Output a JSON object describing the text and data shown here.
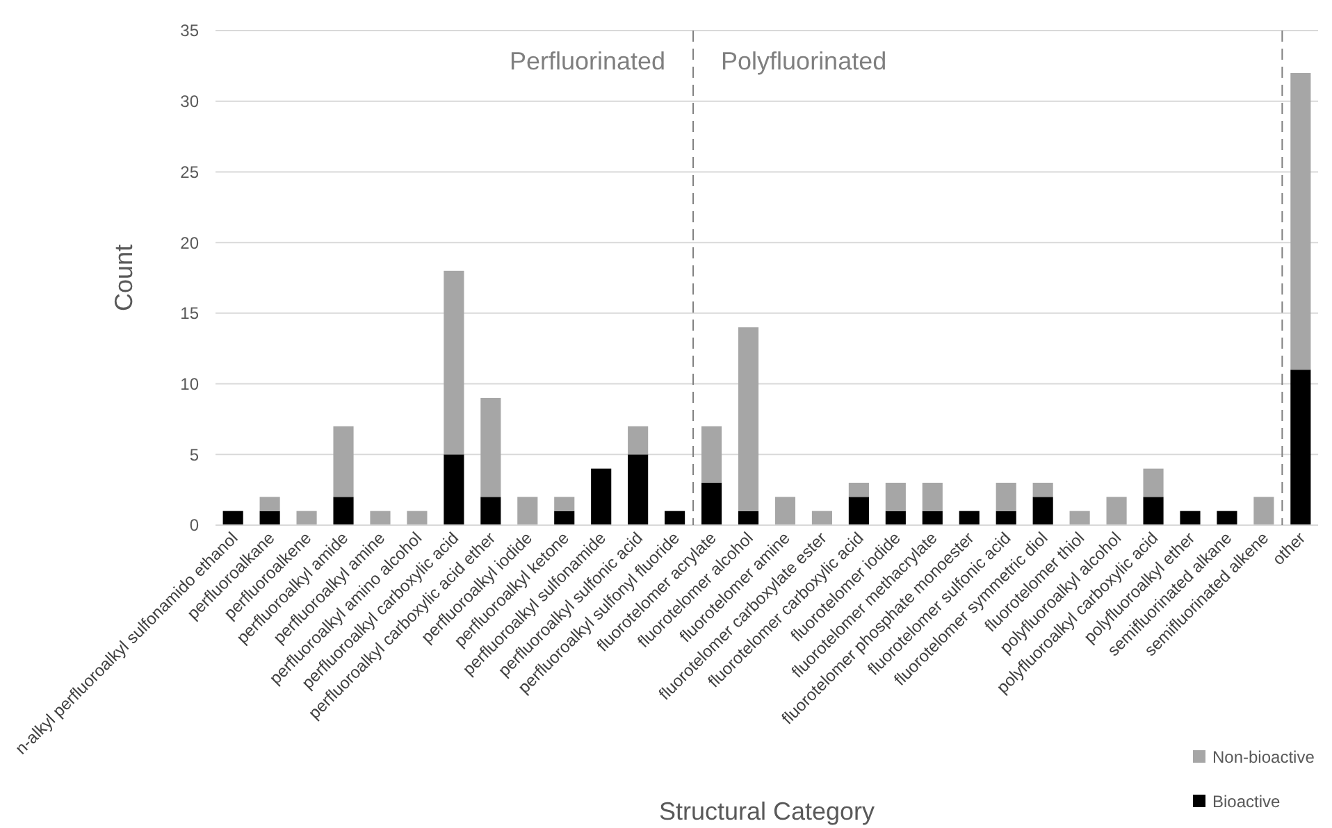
{
  "chart_data": {
    "type": "bar",
    "stacked": true,
    "xlabel": "Structural Category",
    "ylabel": "Count",
    "categories": [
      "n-alkyl perfluoroalkyl sulfonamido ethanol",
      "perfluoroalkane",
      "perfluoroalkene",
      "perfluoroalkyl amide",
      "perfluoroalkyl amine",
      "perfluoroalkyl amino alcohol",
      "perfluoroalkyl carboxylic acid",
      "perfluoroalkyl carboxylic acid ether",
      "perfluoroalkyl iodide",
      "perfluoroalkyl ketone",
      "perfluoroalkyl sulfonamide",
      "perfluoroalkyl sulfonic acid",
      "perfluoroalkyl sulfonyl fluoride",
      "fluorotelomer acrylate",
      "fluorotelomer alcohol",
      "fluorotelomer amine",
      "fluorotelomer carboxylate ester",
      "fluorotelomer carboxylic acid",
      "fluorotelomer iodide",
      "fluorotelomer methacrylate",
      "fluorotelomer phosphate monoester",
      "fluorotelomer sulfonic acid",
      "fluorotelomer symmetric diol",
      "fluorotelomer thiol",
      "polyfluoroalkyl alcohol",
      "polyfluoroalkyl carboxylic acid",
      "polyfluoroalkyl ether",
      "semifluorinated alkane",
      "semifluorinated alkene",
      "other"
    ],
    "series": [
      {
        "name": "Bioactive",
        "color": "#000000",
        "values": [
          1,
          1,
          0,
          2,
          0,
          0,
          5,
          2,
          0,
          1,
          4,
          5,
          1,
          3,
          1,
          0,
          0,
          2,
          1,
          1,
          1,
          1,
          2,
          0,
          0,
          2,
          1,
          1,
          0,
          11
        ]
      },
      {
        "name": "Non-bioactive",
        "color": "#a6a6a6",
        "values": [
          0,
          1,
          1,
          5,
          1,
          1,
          13,
          7,
          2,
          1,
          0,
          2,
          0,
          4,
          13,
          2,
          1,
          1,
          2,
          2,
          0,
          2,
          1,
          1,
          2,
          2,
          0,
          0,
          2,
          21
        ]
      }
    ],
    "ylim": [
      0,
      35
    ],
    "yticks": [
      0,
      5,
      10,
      15,
      20,
      25,
      30,
      35
    ],
    "grid": "y",
    "legend": "bottom right",
    "annotations": [
      "Perfluorinated",
      "Polyfluorinated"
    ]
  }
}
